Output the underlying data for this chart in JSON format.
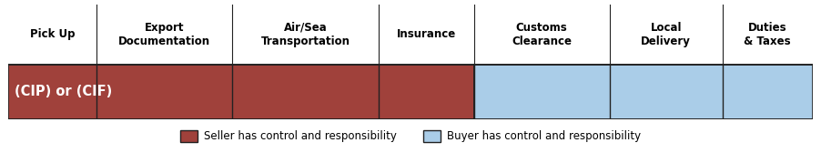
{
  "columns": [
    "Pick Up",
    "Export\nDocumentation",
    "Air/Sea\nTransportation",
    "Insurance",
    "Customs\nClearance",
    "Local\nDelivery",
    "Duties\n& Taxes"
  ],
  "col_widths": [
    0.88,
    1.35,
    1.45,
    0.95,
    1.35,
    1.12,
    0.9
  ],
  "seller_cols": 4,
  "bar_label": "(CIP) or (CIF)",
  "seller_color": "#A0413B",
  "buyer_color": "#AACDE8",
  "seller_legend": "Seller has control and responsibility",
  "buyer_legend": "Buyer has control and responsibility",
  "background_color": "#ffffff",
  "header_fontsize": 8.5,
  "bar_label_fontsize": 10.5,
  "legend_fontsize": 8.5,
  "divider_color": "#222222",
  "bar_outline_color": "#222222"
}
